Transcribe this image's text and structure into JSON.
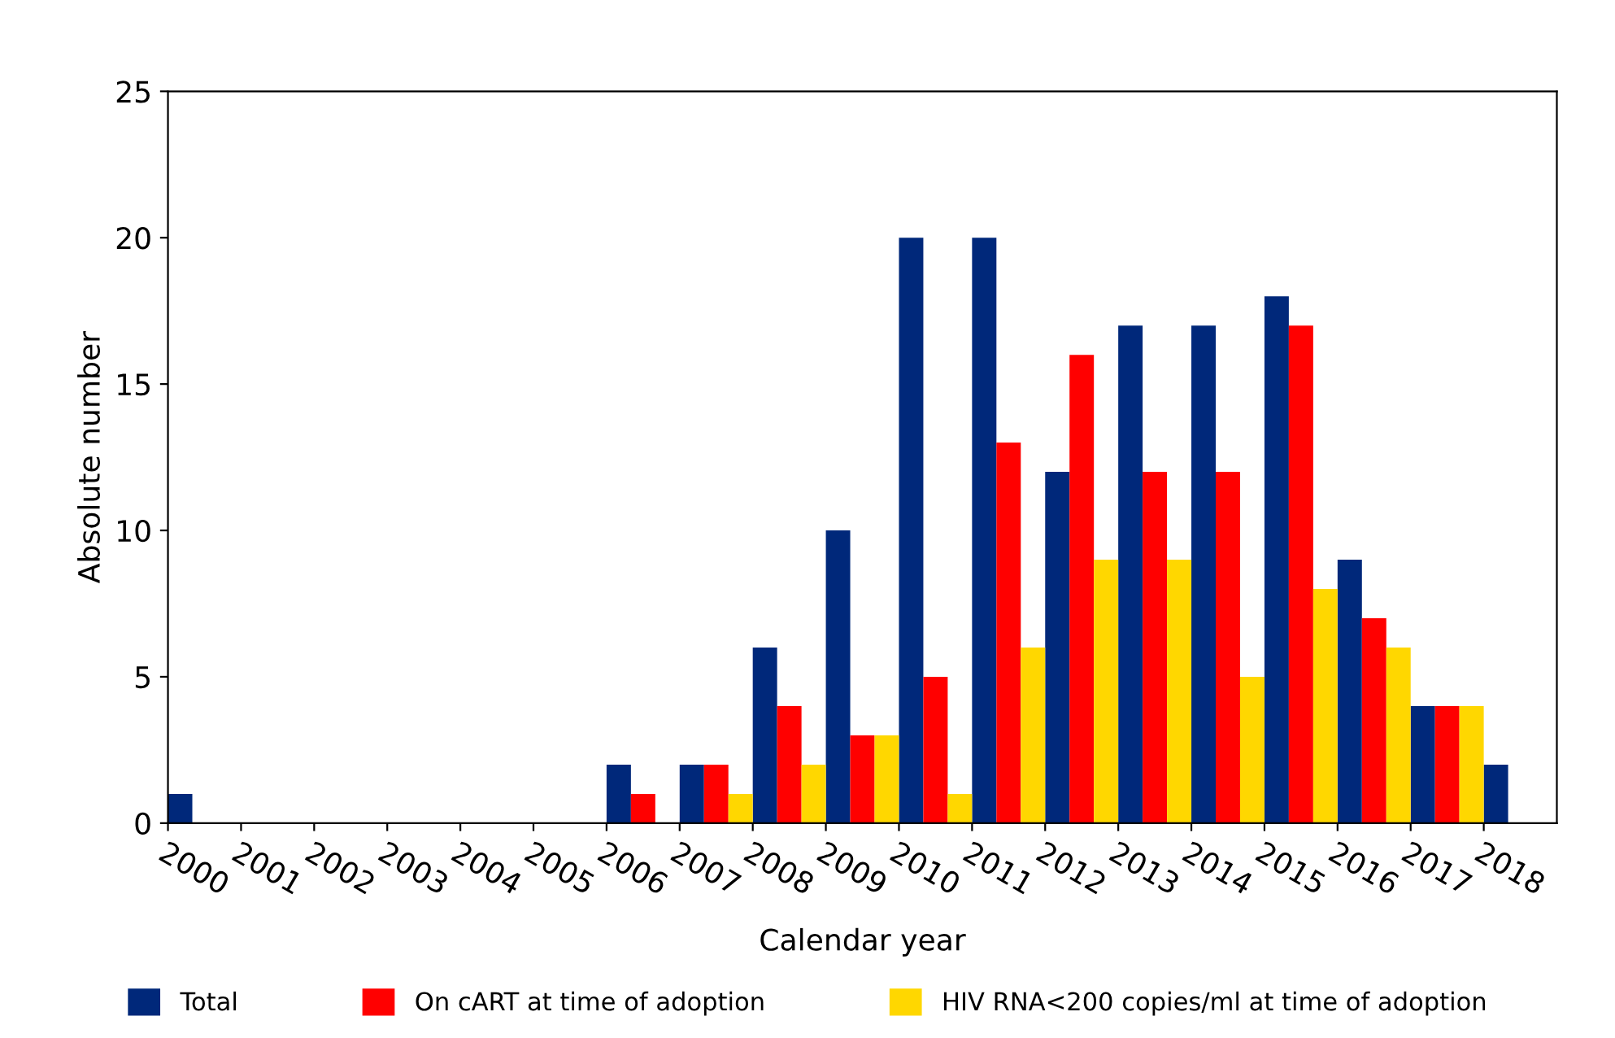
{
  "chart_data": {
    "type": "bar",
    "xlabel": "Calendar year",
    "ylabel": "Absolute number",
    "categories": [
      "2000",
      "2001",
      "2002",
      "2003",
      "2004",
      "2005",
      "2006",
      "2007",
      "2008",
      "2009",
      "2010",
      "2011",
      "2012",
      "2013",
      "2014",
      "2015",
      "2016",
      "2017",
      "2018"
    ],
    "series": [
      {
        "name": "Total",
        "color": "#00287a",
        "values": [
          1,
          0,
          0,
          0,
          0,
          0,
          2,
          2,
          6,
          10,
          20,
          20,
          12,
          17,
          17,
          18,
          9,
          4,
          2
        ]
      },
      {
        "name": "On cART at time of adoption",
        "color": "#ff0000",
        "values": [
          0,
          0,
          0,
          0,
          0,
          0,
          1,
          2,
          4,
          3,
          5,
          13,
          16,
          12,
          12,
          17,
          7,
          4,
          0
        ]
      },
      {
        "name": "HIV RNA<200 copies/ml at time of adoption",
        "color": "#ffd700",
        "values": [
          0,
          0,
          0,
          0,
          0,
          0,
          0,
          1,
          2,
          3,
          1,
          6,
          9,
          9,
          5,
          8,
          6,
          4,
          0
        ]
      }
    ],
    "ylim": [
      0,
      25
    ],
    "yticks": [
      0,
      5,
      10,
      15,
      20,
      25
    ],
    "grid": false,
    "legend": "bottom"
  }
}
